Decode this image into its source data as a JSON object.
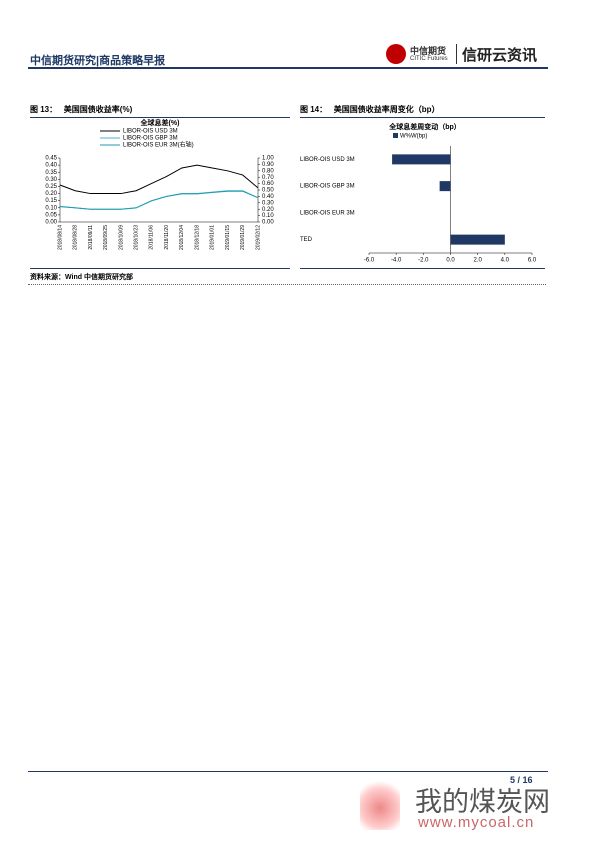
{
  "header": {
    "title": "中信期货研究|商品策略早报",
    "logo_cn": "中信期货",
    "logo_en": "CITIC Futures",
    "brand": "信研云资讯"
  },
  "figures": [
    {
      "number": "图 13：",
      "caption": "美国国债收益率(%)"
    },
    {
      "number": "图 14：",
      "caption": "美国国债收益率周变化（bp）"
    }
  ],
  "source": "资料来源：Wind 中信期货研究部",
  "page": "5 / 16",
  "watermark": {
    "name": "我的煤炭网",
    "url": "www.mycoal.cn"
  },
  "chart_data": [
    {
      "type": "line",
      "title": "全球息差(%)",
      "categories": [
        "2018/08/14",
        "2018/08/28",
        "2018/09/11",
        "2018/09/25",
        "2018/10/09",
        "2018/10/23",
        "2018/11/06",
        "2018/11/20",
        "2018/12/04",
        "2018/12/18",
        "2019/01/01",
        "2019/01/15",
        "2019/01/29",
        "2019/02/12"
      ],
      "series": [
        {
          "name": "LIBOR-OIS USD 3M",
          "color": "#000000",
          "values": [
            0.26,
            0.22,
            0.2,
            0.2,
            0.2,
            0.22,
            0.27,
            0.32,
            0.38,
            0.4,
            0.38,
            0.36,
            0.33,
            0.24
          ]
        },
        {
          "name": "LIBOR-OIS GBP 3M",
          "color": "#3fb8c9",
          "values": [
            0.11,
            0.1,
            0.09,
            0.09,
            0.09,
            0.1,
            0.15,
            0.18,
            0.2,
            0.2,
            0.21,
            0.22,
            0.22,
            0.17
          ]
        },
        {
          "name": "LIBOR-OIS EUR 3M(右轴)",
          "color": "#1f9bb0",
          "axis": "y2",
          "values": [
            0.24,
            0.22,
            0.2,
            0.2,
            0.2,
            0.22,
            0.33,
            0.4,
            0.44,
            0.44,
            0.46,
            0.48,
            0.48,
            0.38
          ]
        }
      ],
      "ylim": [
        0,
        0.45
      ],
      "yticks": [
        {
          "value": 0,
          "label": "0.00"
        },
        {
          "value": 0.05,
          "label": "0.05"
        },
        {
          "value": 0.1,
          "label": "0.10"
        },
        {
          "value": 0.15,
          "label": "0.15"
        },
        {
          "value": 0.2,
          "label": "0.20"
        },
        {
          "value": 0.25,
          "label": "0.25"
        },
        {
          "value": 0.3,
          "label": "0.30"
        },
        {
          "value": 0.35,
          "label": "0.35"
        },
        {
          "value": 0.4,
          "label": "0.40"
        },
        {
          "value": 0.45,
          "label": "0.45"
        }
      ],
      "y2lim": [
        0,
        1
      ],
      "y2ticks": [
        {
          "value": 0,
          "label": "0.00"
        },
        {
          "value": 0.1,
          "label": "0.10"
        },
        {
          "value": 0.2,
          "label": "0.20"
        },
        {
          "value": 0.3,
          "label": "0.30"
        },
        {
          "value": 0.4,
          "label": "0.40"
        },
        {
          "value": 0.5,
          "label": "0.50"
        },
        {
          "value": 0.6,
          "label": "0.60"
        },
        {
          "value": 0.7,
          "label": "0.70"
        },
        {
          "value": 0.8,
          "label": "0.80"
        },
        {
          "value": 0.9,
          "label": "0.90"
        },
        {
          "value": 1,
          "label": "1.00"
        }
      ]
    },
    {
      "type": "hbar",
      "title": "全球息差周变动（bp）",
      "categories": [
        "LIBOR-OIS USD 3M",
        "LIBOR-OIS GBP 3M",
        "LIBOR-OIS EUR 3M",
        "TED"
      ],
      "series": [
        {
          "name": "W%W(bp)",
          "color": "#1f3864",
          "values": [
            -4.3,
            -0.8,
            0,
            4.0
          ]
        }
      ],
      "xlim": [
        -6,
        6
      ],
      "xticks": [
        {
          "value": -6,
          "label": "-6.0"
        },
        {
          "value": -4,
          "label": "-4.0"
        },
        {
          "value": -2,
          "label": "-2.0"
        },
        {
          "value": 0,
          "label": "0.0"
        },
        {
          "value": 2,
          "label": "2.0"
        },
        {
          "value": 4,
          "label": "4.0"
        },
        {
          "value": 6,
          "label": "6.0"
        }
      ]
    }
  ]
}
